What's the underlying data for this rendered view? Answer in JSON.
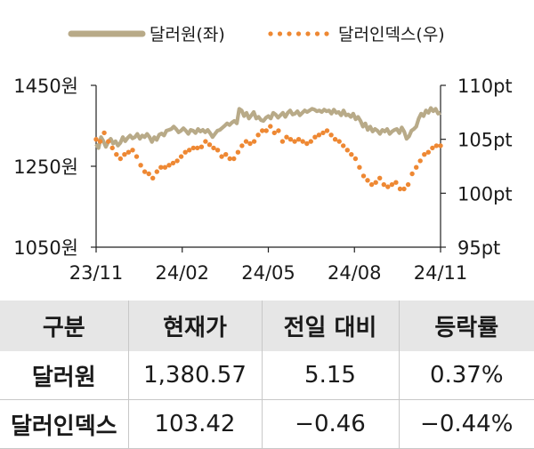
{
  "chart_data": {
    "type": "line",
    "title": "",
    "legend_position": "top",
    "x_tick_labels": [
      "23/11",
      "24/02",
      "24/05",
      "24/08",
      "24/11"
    ],
    "left_axis": {
      "ylim": [
        1050,
        1450
      ],
      "ticks": [
        1450,
        1250,
        1050
      ],
      "tick_labels": [
        "1450원",
        "1250원",
        "1050원"
      ]
    },
    "right_axis": {
      "ylim": [
        95,
        110
      ],
      "ticks": [
        110,
        105,
        100,
        95
      ],
      "tick_labels": [
        "110pt",
        "105pt",
        "100pt",
        "95pt"
      ]
    },
    "series": [
      {
        "name": "달러원(좌)",
        "axis": "left",
        "style": "solid",
        "color": "#b8aa88",
        "values": [
          1305,
          1295,
          1322,
          1312,
          1298,
          1310,
          1318,
          1306,
          1312,
          1301,
          1308,
          1322,
          1312,
          1320,
          1326,
          1319,
          1322,
          1330,
          1318,
          1326,
          1322,
          1330,
          1322,
          1310,
          1322,
          1315,
          1328,
          1331,
          1326,
          1338,
          1340,
          1342,
          1348,
          1342,
          1334,
          1338,
          1344,
          1338,
          1330,
          1340,
          1338,
          1332,
          1342,
          1336,
          1340,
          1334,
          1340,
          1332,
          1322,
          1330,
          1338,
          1340,
          1345,
          1350,
          1356,
          1352,
          1358,
          1362,
          1356,
          1392,
          1388,
          1374,
          1382,
          1368,
          1376,
          1384,
          1368,
          1372,
          1364,
          1362,
          1370,
          1374,
          1368,
          1382,
          1378,
          1370,
          1376,
          1382,
          1372,
          1382,
          1388,
          1378,
          1380,
          1386,
          1376,
          1382,
          1388,
          1384,
          1388,
          1392,
          1390,
          1386,
          1388,
          1384,
          1390,
          1386,
          1388,
          1380,
          1390,
          1382,
          1384,
          1376,
          1388,
          1376,
          1378,
          1372,
          1380,
          1366,
          1372,
          1362,
          1348,
          1356,
          1340,
          1348,
          1336,
          1342,
          1338,
          1330,
          1340,
          1336,
          1342,
          1330,
          1336,
          1340,
          1342,
          1332,
          1346,
          1336,
          1318,
          1324,
          1338,
          1342,
          1348,
          1368,
          1380,
          1374,
          1388,
          1382,
          1394,
          1386,
          1392,
          1380,
          1382
        ]
      },
      {
        "name": "달러인덱스(우)",
        "axis": "right",
        "style": "dotted",
        "color": "#ee8833",
        "values": [
          105.0,
          104.8,
          105.6,
          104.8,
          104.2,
          103.6,
          103.2,
          103.6,
          103.8,
          104.0,
          103.4,
          102.6,
          102.0,
          101.8,
          101.4,
          102.0,
          102.4,
          102.4,
          102.6,
          102.8,
          103.0,
          103.4,
          103.8,
          104.0,
          104.2,
          104.2,
          104.3,
          104.8,
          104.5,
          104.2,
          104.0,
          103.4,
          103.6,
          103.2,
          103.2,
          103.8,
          104.4,
          104.8,
          104.6,
          104.8,
          105.4,
          105.8,
          105.8,
          106.2,
          105.6,
          105.8,
          104.8,
          105.2,
          105.0,
          104.8,
          105.0,
          104.8,
          104.6,
          104.8,
          105.2,
          105.4,
          105.6,
          105.8,
          105.4,
          105.0,
          104.8,
          104.4,
          104.0,
          103.6,
          103.2,
          102.4,
          101.6,
          101.2,
          100.8,
          101.0,
          101.4,
          100.8,
          100.6,
          100.8,
          101.0,
          100.4,
          100.4,
          100.8,
          101.8,
          102.4,
          103.0,
          103.6,
          103.8,
          104.2,
          104.4,
          104.4
        ]
      }
    ]
  },
  "legend": {
    "items": [
      "달러원(좌)",
      "달러인덱스(우)"
    ]
  },
  "table": {
    "headers": [
      "구분",
      "현재가",
      "전일 대비",
      "등락률"
    ],
    "rows": [
      [
        "달러원",
        "1,380.57",
        "5.15",
        "0.37%"
      ],
      [
        "달러인덱스",
        "103.42",
        "−0.46",
        "−0.44%"
      ]
    ]
  }
}
